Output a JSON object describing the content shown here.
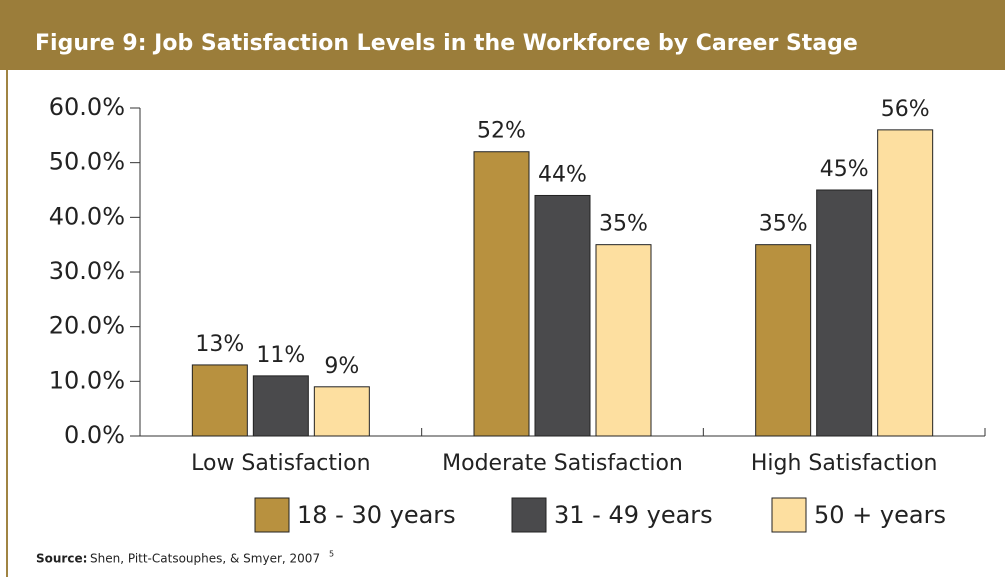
{
  "chart_data": {
    "type": "bar",
    "title": "Figure 9: Job Satisfaction Levels in the Workforce by Career Stage",
    "categories": [
      "Low Satisfaction",
      "Moderate Satisfaction",
      "High Satisfaction"
    ],
    "series": [
      {
        "name": "18 - 30 years",
        "color": "#b8913f",
        "values": [
          13,
          52,
          35
        ],
        "value_labels": [
          "13%",
          "52%",
          "35%"
        ]
      },
      {
        "name": "31 - 49 years",
        "color": "#4a4a4c",
        "values": [
          11,
          44,
          45
        ],
        "value_labels": [
          "11%",
          "44%",
          "45%"
        ]
      },
      {
        "name": "50 + years",
        "color": "#fddfa0",
        "values": [
          9,
          35,
          56
        ],
        "value_labels": [
          "9%",
          "35%",
          "56%"
        ]
      }
    ],
    "ylim": [
      0,
      60
    ],
    "yticks": [
      {
        "value": 0,
        "label": "0.0%"
      },
      {
        "value": 10,
        "label": "10.0%"
      },
      {
        "value": 20,
        "label": "20.0%"
      },
      {
        "value": 30,
        "label": "30.0%"
      },
      {
        "value": 40,
        "label": "40.0%"
      },
      {
        "value": 50,
        "label": "50.0%"
      },
      {
        "value": 60,
        "label": "60.0%"
      }
    ],
    "legend": "bottom",
    "source": {
      "label": "Source:",
      "text": "Shen, Pitt-Catsouphes, & Smyer, 2007",
      "note": "5"
    }
  }
}
